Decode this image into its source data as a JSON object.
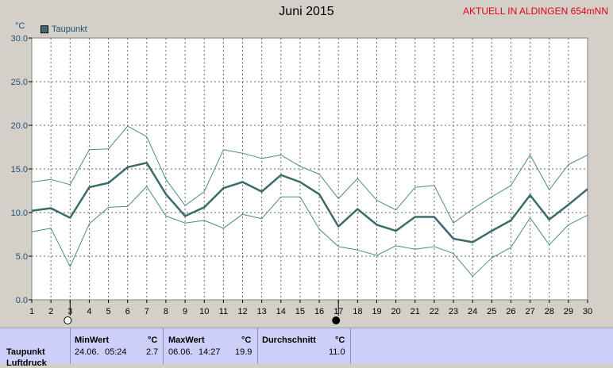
{
  "header": {
    "title": "Juni 2015",
    "station": "AKTUELL IN ALDINGEN 654mNN",
    "unit": "°C"
  },
  "legend": {
    "label": "Taupunkt",
    "color": "#3d6b6b"
  },
  "moon_phases": [
    {
      "day": 3,
      "phase": "full-moon-icon"
    },
    {
      "day": 17,
      "phase": "new-moon-icon"
    }
  ],
  "chart_data": {
    "type": "line",
    "x": [
      1,
      2,
      3,
      4,
      5,
      6,
      7,
      8,
      9,
      10,
      11,
      12,
      13,
      14,
      15,
      16,
      17,
      18,
      19,
      20,
      21,
      22,
      23,
      24,
      25,
      26,
      27,
      28,
      29,
      30
    ],
    "ylim": [
      0,
      30
    ],
    "yticks": [
      "0.0",
      "5.0",
      "10.0",
      "15.0",
      "20.0",
      "25.0",
      "30.0"
    ],
    "xlim": [
      1,
      30
    ],
    "grid": true,
    "ylabel": "°C",
    "series": [
      {
        "name": "Taupunkt",
        "color": "#3d6b6b",
        "values": [
          10.2,
          10.5,
          9.4,
          12.9,
          13.4,
          15.2,
          15.7,
          12.1,
          9.6,
          10.6,
          12.8,
          13.5,
          12.4,
          14.3,
          13.5,
          12.1,
          8.4,
          10.4,
          8.6,
          7.9,
          9.5,
          9.5,
          7.0,
          6.6,
          7.9,
          9.1,
          12.0,
          9.2,
          10.9,
          12.7
        ],
        "width": 2.5
      },
      {
        "name": "",
        "color": "#4b8a8a",
        "values": [
          13.5,
          13.8,
          13.2,
          17.2,
          17.3,
          19.9,
          18.7,
          13.8,
          10.8,
          12.4,
          17.2,
          16.8,
          16.2,
          16.6,
          15.3,
          14.4,
          11.6,
          13.9,
          11.4,
          10.3,
          12.9,
          13.1,
          8.8,
          10.4,
          11.8,
          13.1,
          16.6,
          12.6,
          15.5,
          16.6
        ],
        "width": 1
      },
      {
        "name": "",
        "color": "#4b8a8a",
        "values": [
          7.8,
          8.2,
          3.8,
          8.7,
          10.6,
          10.7,
          13.0,
          9.6,
          8.8,
          9.1,
          8.2,
          9.8,
          9.3,
          11.8,
          11.8,
          8.1,
          6.1,
          5.7,
          5.1,
          6.2,
          5.8,
          6.1,
          5.3,
          2.7,
          4.8,
          6.0,
          9.4,
          6.3,
          8.6,
          9.7
        ],
        "width": 1
      }
    ]
  },
  "stats": {
    "row_label": "Taupunkt",
    "row_label_2": "Luftdruck",
    "min": {
      "header": "MinWert",
      "unit": "°C",
      "date": "24.06.",
      "time": "05:24",
      "value": "2.7"
    },
    "max": {
      "header": "MaxWert",
      "unit": "°C",
      "date": "06.06.",
      "time": "14:27",
      "value": "19.9"
    },
    "avg": {
      "header": "Durchschnitt",
      "unit": "°C",
      "value": "11.0"
    }
  }
}
